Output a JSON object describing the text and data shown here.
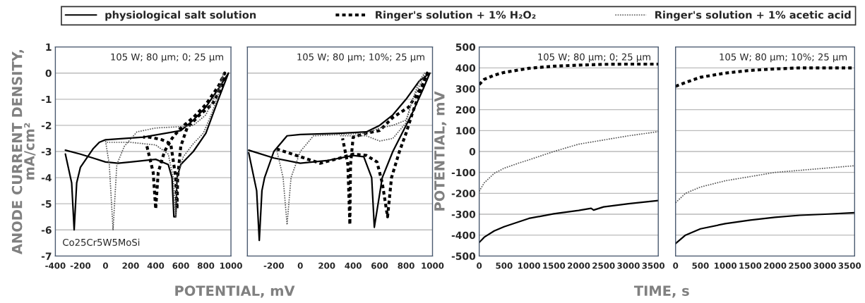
{
  "chart_data": [
    {
      "type": "line",
      "ylabel": "ANODE CURRENT DENSITY,\nmA/cm²",
      "xlabel": "POTENTIAL, mV",
      "xlim": [
        -400,
        1000
      ],
      "xticks": [
        -400,
        -200,
        0,
        200,
        400,
        600,
        800,
        1000
      ],
      "ylim": [
        -7,
        1
      ],
      "yticks": [
        -7,
        -6,
        -5,
        -4,
        -3,
        -2,
        -1,
        0,
        1
      ],
      "grid": "y",
      "legend": "top",
      "annotations": [
        "105 W; 80 µm; 0; 25 µm",
        "Co25Cr5W5MoSi"
      ],
      "series": [
        {
          "name": "physiological salt solution",
          "color": "#000000",
          "line_style": "solid",
          "x": [
            -320,
            -270,
            -250,
            -230,
            -200,
            -100,
            -50,
            0,
            300,
            600,
            700,
            800,
            900,
            980,
            900,
            800,
            700,
            600,
            570,
            560,
            545,
            530,
            500,
            400,
            200,
            100,
            0,
            -100,
            -200,
            -320
          ],
          "values": [
            -3.1,
            -4.2,
            -6,
            -4.2,
            -3.6,
            -2.9,
            -2.65,
            -2.55,
            -2.45,
            -2.2,
            -1.8,
            -1.3,
            -0.6,
            0,
            -1,
            -2.3,
            -3,
            -3.5,
            -4,
            -5.5,
            -5.5,
            -4,
            -3.5,
            -3.3,
            -3.4,
            -3.45,
            -3.4,
            -3.25,
            -3.1,
            -2.95
          ]
        },
        {
          "name": "Ringer's solution + 1% H₂O₂",
          "color": "#000000",
          "line_style": "dashed",
          "x": [
            330,
            380,
            400,
            420,
            470,
            530,
            600,
            700,
            800,
            900,
            950,
            930,
            850,
            750,
            650,
            600,
            575,
            570,
            560,
            520,
            450,
            350,
            300
          ],
          "values": [
            -2.8,
            -3.8,
            -5.2,
            -3.8,
            -3,
            -2.5,
            -2.1,
            -1.7,
            -1.2,
            -0.5,
            0,
            -0.5,
            -1.2,
            -1.6,
            -2.1,
            -2.8,
            -4,
            -5.2,
            -4,
            -2.7,
            -2.55,
            -2.45,
            -2.45
          ]
        },
        {
          "name": "Ringer's solution + 1% acetic acid",
          "color": "#555555",
          "line_style": "dotted",
          "x": [
            0,
            30,
            60,
            90,
            150,
            250,
            400,
            600,
            700,
            800,
            900,
            940,
            920,
            850,
            780,
            700,
            620,
            570,
            560,
            540,
            500,
            400,
            200,
            0
          ],
          "values": [
            -2.6,
            -3.5,
            -6,
            -3.5,
            -2.8,
            -2.25,
            -2.1,
            -2.05,
            -2,
            -1.6,
            -0.6,
            0,
            -0.5,
            -1.5,
            -2.3,
            -2.7,
            -3.2,
            -4,
            -5.5,
            -4,
            -3.1,
            -2.75,
            -2.65,
            -2.65
          ]
        }
      ]
    },
    {
      "type": "line",
      "xlim": [
        -400,
        1000
      ],
      "xticks": [
        -200,
        0,
        200,
        400,
        600,
        800,
        1000
      ],
      "ylim": [
        -7,
        1
      ],
      "yticks": [
        -7,
        -6,
        -5,
        -4,
        -3,
        -2,
        -1,
        0,
        1
      ],
      "grid": "y",
      "tick_labels": "x",
      "annotations": [
        "105 W; 80 µm; 10%; 25 µm"
      ],
      "series": [
        {
          "color": "#000000",
          "line_style": "solid",
          "x": [
            -390,
            -330,
            -310,
            -290,
            -270,
            -200,
            -100,
            0,
            300,
            500,
            600,
            700,
            800,
            900,
            980,
            930,
            850,
            800,
            700,
            620,
            560,
            540,
            480,
            400,
            200,
            0,
            -200,
            -390
          ],
          "values": [
            -3.05,
            -4.5,
            -6.4,
            -4.5,
            -4,
            -3,
            -2.4,
            -2.35,
            -2.3,
            -2.25,
            -2,
            -1.6,
            -1,
            -0.3,
            0,
            -0.6,
            -1.5,
            -2,
            -3,
            -4,
            -5.9,
            -4,
            -3.2,
            -3.15,
            -3.35,
            -3.45,
            -3.25,
            -2.95
          ]
        },
        {
          "color": "#000000",
          "line_style": "dashed",
          "x": [
            -180,
            0,
            150,
            300,
            400,
            500,
            580,
            620,
            660,
            690,
            750,
            800,
            850,
            900,
            960,
            920,
            820,
            700,
            600,
            500,
            400,
            380,
            375,
            360,
            320
          ],
          "values": [
            -2.9,
            -3.2,
            -3.45,
            -3.25,
            -3.1,
            -3.15,
            -3.4,
            -4.2,
            -5.5,
            -4,
            -3,
            -2.3,
            -1.5,
            -0.8,
            0,
            -0.5,
            -1.3,
            -1.7,
            -2.2,
            -2.3,
            -2.45,
            -3.5,
            -5.8,
            -3.5,
            -2.5
          ]
        },
        {
          "color": "#555555",
          "line_style": "dotted",
          "x": [
            -180,
            -130,
            -100,
            -70,
            0,
            100,
            300,
            500,
            600,
            700,
            800,
            850,
            900,
            940,
            920,
            850,
            800,
            700,
            600,
            500,
            400,
            300
          ],
          "values": [
            -2.9,
            -4,
            -5.8,
            -4,
            -3,
            -2.4,
            -2.35,
            -2.3,
            -2.1,
            -2,
            -1.8,
            -1,
            -0.3,
            0,
            -0.3,
            -1,
            -1.9,
            -2.5,
            -2.6,
            -2.4,
            -2.4,
            -2.4
          ]
        }
      ]
    },
    {
      "type": "line",
      "ylabel": "POTENTIAL, mV",
      "xlabel": "TIME, s",
      "xlim": [
        0,
        3600
      ],
      "xticks": [
        0,
        500,
        1000,
        1500,
        2000,
        2500,
        3000,
        3500
      ],
      "ylim": [
        -500,
        500
      ],
      "yticks": [
        -500,
        -400,
        -300,
        -200,
        -100,
        0,
        100,
        200,
        300,
        400,
        500
      ],
      "grid": "y",
      "annotations": [
        "105 W; 80 µm; 0; 25 µm"
      ],
      "series": [
        {
          "color": "#000000",
          "line_style": "solid",
          "x": [
            0,
            100,
            300,
            500,
            1000,
            1500,
            2000,
            2250,
            2300,
            2500,
            3000,
            3600
          ],
          "values": [
            -435,
            -410,
            -380,
            -360,
            -320,
            -298,
            -282,
            -272,
            -280,
            -265,
            -250,
            -235
          ]
        },
        {
          "color": "#000000",
          "line_style": "dashed",
          "x": [
            0,
            100,
            300,
            500,
            1000,
            1500,
            2000,
            2500,
            3000,
            3500,
            3600
          ],
          "values": [
            320,
            345,
            365,
            378,
            398,
            408,
            413,
            417,
            418,
            418,
            418
          ]
        },
        {
          "color": "#555555",
          "line_style": "dotted",
          "x": [
            0,
            100,
            300,
            500,
            800,
            1000,
            1500,
            2000,
            2500,
            3000,
            3600
          ],
          "values": [
            -190,
            -150,
            -105,
            -80,
            -55,
            -40,
            0,
            35,
            55,
            75,
            95
          ]
        }
      ]
    },
    {
      "type": "line",
      "xlim": [
        0,
        3600
      ],
      "xticks": [
        0,
        500,
        1000,
        1500,
        2000,
        2500,
        3000,
        3500
      ],
      "ylim": [
        -500,
        500
      ],
      "yticks": [
        -500,
        -400,
        -300,
        -200,
        -100,
        0,
        100,
        200,
        300,
        400,
        500
      ],
      "grid": "y",
      "tick_labels": "x",
      "annotations": [
        "105 W; 80 µm; 10%; 25 µm"
      ],
      "series": [
        {
          "color": "#000000",
          "line_style": "solid",
          "x": [
            0,
            200,
            500,
            1000,
            1500,
            2000,
            2500,
            3000,
            3600
          ],
          "values": [
            -440,
            -400,
            -370,
            -345,
            -328,
            -315,
            -305,
            -300,
            -293
          ]
        },
        {
          "color": "#000000",
          "line_style": "dashed",
          "x": [
            0,
            200,
            500,
            1000,
            1500,
            2000,
            2500,
            3000,
            3600
          ],
          "values": [
            312,
            330,
            355,
            375,
            388,
            395,
            400,
            400,
            400
          ]
        },
        {
          "color": "#555555",
          "line_style": "dotted",
          "x": [
            0,
            200,
            500,
            1000,
            1500,
            2000,
            2500,
            3000,
            3600
          ],
          "values": [
            -245,
            -200,
            -170,
            -140,
            -120,
            -100,
            -90,
            -80,
            -68
          ]
        }
      ]
    }
  ]
}
